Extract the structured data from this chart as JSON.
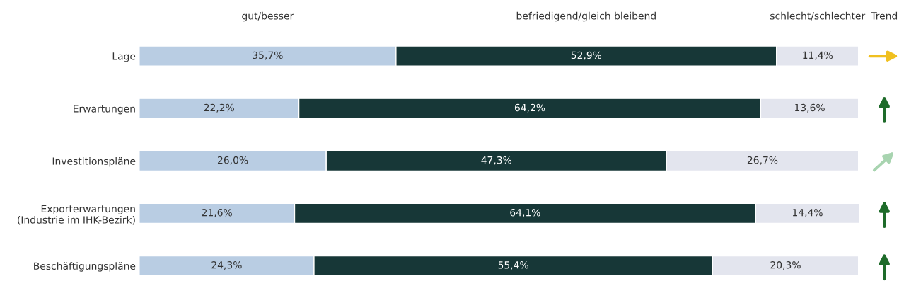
{
  "chart_data": {
    "type": "bar",
    "orientation": "horizontal",
    "stacked": true,
    "grid": false,
    "legend": "top",
    "tick_labels": "y",
    "categories": [
      "Lage",
      "Erwartungen",
      "Investitionspläne",
      "Exporterwartungen\n(Industrie im IHK-Bezirk)",
      "Beschäftigungspläne"
    ],
    "series": [
      {
        "name": "gut/besser",
        "color": "#b9cde3",
        "values": [
          35.7,
          22.2,
          26.0,
          21.6,
          24.3
        ],
        "value_labels": [
          "35,7%",
          "22,2%",
          "26,0%",
          "21,6%",
          "24,3%"
        ]
      },
      {
        "name": "befriedigend/gleich bleibend",
        "color": "#173737",
        "values": [
          52.9,
          64.2,
          47.3,
          64.1,
          55.4
        ],
        "value_labels": [
          "52,9%",
          "64,2%",
          "47,3%",
          "64,1%",
          "55,4%"
        ]
      },
      {
        "name": "schlecht/schlechter",
        "color": "#e3e5ee",
        "values": [
          11.4,
          13.6,
          26.7,
          14.4,
          20.3
        ],
        "value_labels": [
          "11,4%",
          "13,6%",
          "26,7%",
          "14,4%",
          "20,3%"
        ]
      }
    ],
    "annotations": [
      "Trend"
    ]
  }
}
